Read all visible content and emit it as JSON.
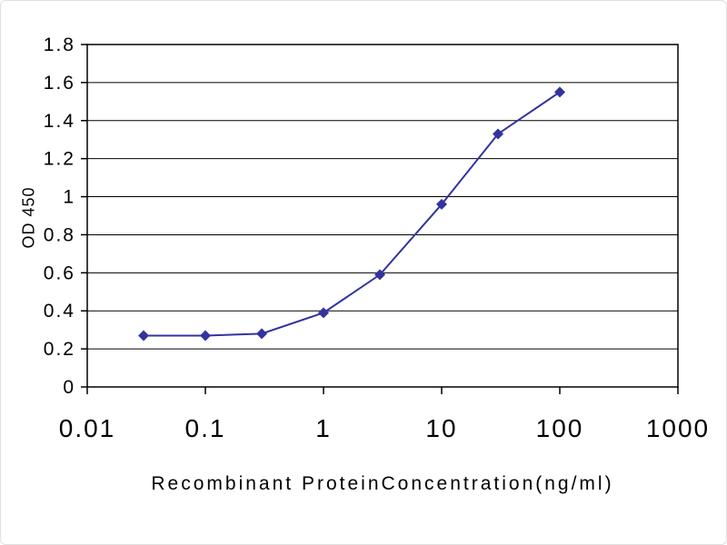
{
  "chart_data": {
    "type": "line",
    "title": "",
    "xlabel": "Recombinant ProteinConcentration(ng/ml)",
    "ylabel": "OD 450",
    "xscale": "log",
    "xlim": [
      0.01,
      1000
    ],
    "ylim": [
      0,
      1.8
    ],
    "xticks": [
      0.01,
      0.1,
      1,
      10,
      100,
      1000
    ],
    "xtick_labels": [
      "0.01",
      "0.1",
      "1",
      "10",
      "100",
      "1000"
    ],
    "yticks": [
      0,
      0.2,
      0.4,
      0.6,
      0.8,
      1.0,
      1.2,
      1.4,
      1.6,
      1.8
    ],
    "ytick_labels": [
      "0",
      "0.2",
      "0.4",
      "0.6",
      "0.8",
      "1",
      "1.2",
      "1.4",
      "1.6",
      "1.8"
    ],
    "grid": "horizontal",
    "legend": "none",
    "line_color": "#3333a0",
    "marker": "diamond",
    "x": [
      0.03,
      0.1,
      0.3,
      1,
      3,
      10,
      30,
      100
    ],
    "series": [
      {
        "name": "OD450",
        "values": [
          0.27,
          0.27,
          0.28,
          0.39,
          0.59,
          0.96,
          1.33,
          1.55
        ]
      }
    ]
  }
}
